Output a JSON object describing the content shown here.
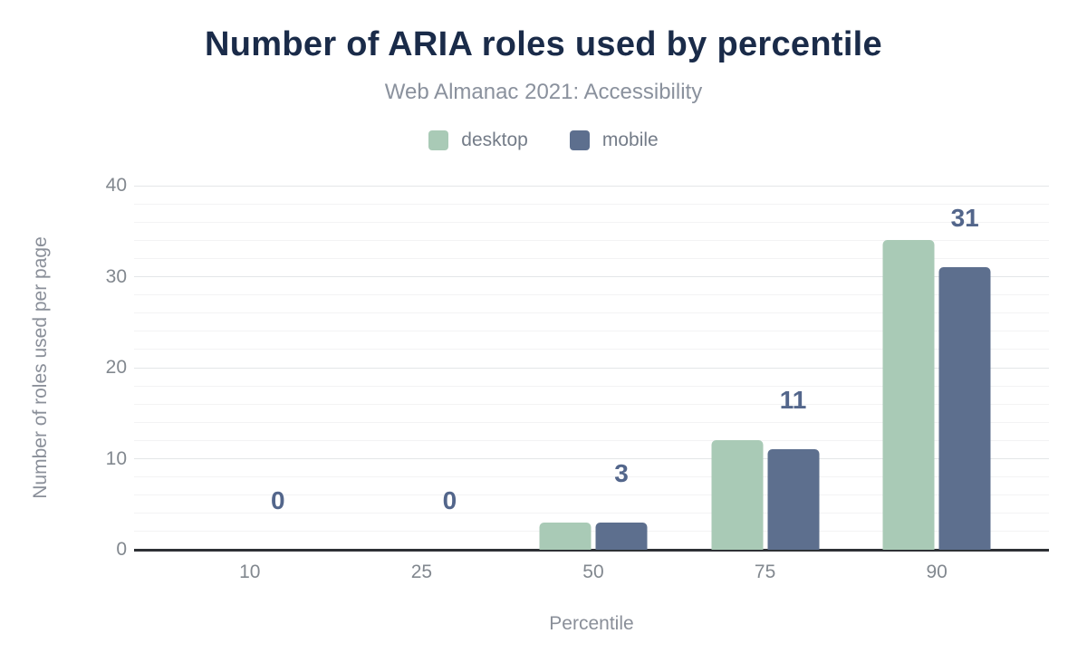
{
  "header": {
    "title": "Number of ARIA roles used by percentile",
    "subtitle": "Web Almanac 2021: Accessibility"
  },
  "chart_data": {
    "type": "bar",
    "title": "Number of ARIA roles used by percentile",
    "subtitle": "Web Almanac 2021: Accessibility",
    "categories": [
      "10",
      "25",
      "50",
      "75",
      "90"
    ],
    "series": [
      {
        "name": "desktop",
        "color": "#a9cab6",
        "values": [
          0,
          0,
          3,
          12,
          34
        ]
      },
      {
        "name": "mobile",
        "color": "#5d6f8e",
        "values": [
          0,
          0,
          3,
          11,
          31
        ]
      }
    ],
    "bar_labels": [
      "0",
      "0",
      "3",
      "11",
      "31"
    ],
    "bar_labels_series": "mobile",
    "xlabel": "Percentile",
    "ylabel": "Number of roles used per page",
    "ylim": [
      0,
      40
    ],
    "y_ticks": [
      "0",
      "10",
      "20",
      "30",
      "40"
    ],
    "grid_minor_step": 2,
    "grid_major_step": 10,
    "grid": "horizontal",
    "legend_position": "top"
  },
  "colors": {
    "title": "#1a2b49",
    "subtitle": "#8a919d",
    "tick_text": "#82888f",
    "axis_title_text": "#8a8f99",
    "bar_label": "#53668b",
    "axis_line": "#2e3135",
    "grid_minor": "#f3f3f4",
    "grid_major": "#e4e6e8",
    "background": "#ffffff"
  }
}
